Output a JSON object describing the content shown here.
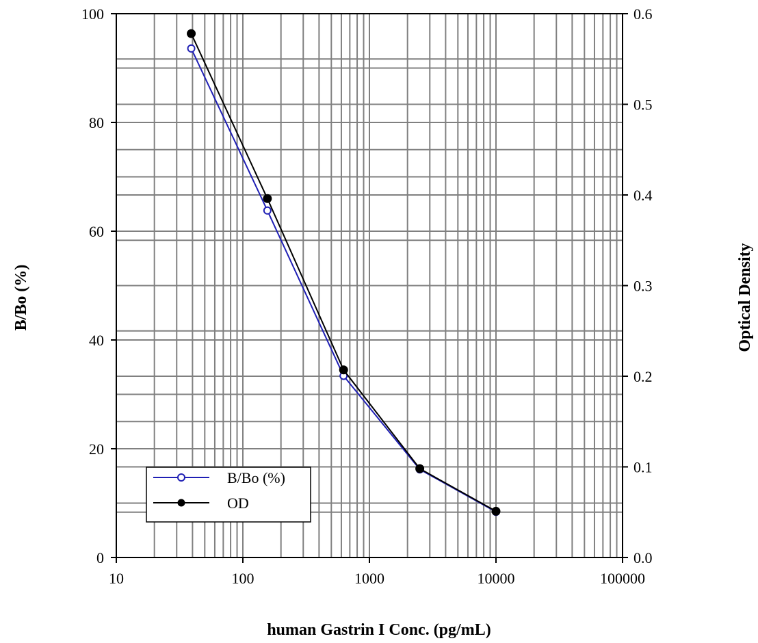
{
  "chart_data": {
    "type": "line",
    "xlabel": "human Gastrin I Conc. (pg/mL)",
    "ylabel_left": "B/Bo (%)",
    "ylabel_right": "Optical Density",
    "x_scale": "log",
    "xlim": [
      10,
      100000
    ],
    "ylim_left": [
      0,
      100
    ],
    "ylim_right": [
      0.0,
      0.6
    ],
    "x_ticks": [
      10,
      100,
      1000,
      10000,
      100000
    ],
    "x_tick_labels": [
      "10",
      "100",
      "1000",
      "10000",
      "100000"
    ],
    "y_left_ticks": [
      0,
      20,
      40,
      60,
      80,
      100
    ],
    "y_left_tick_labels": [
      "0",
      "20",
      "40",
      "60",
      "80",
      "100"
    ],
    "y_right_ticks": [
      0.0,
      0.1,
      0.2,
      0.3,
      0.4,
      0.5,
      0.6
    ],
    "y_right_tick_labels": [
      "0.0",
      "0.1",
      "0.2",
      "0.3",
      "0.4",
      "0.5",
      "0.6"
    ],
    "grid": true,
    "legend_position": "bottom-left",
    "series": [
      {
        "name": "B/Bo (%)",
        "axis": "left",
        "color": "#1f1fb4",
        "marker": "open-circle",
        "x": [
          39.1,
          156.25,
          625,
          2500,
          10000
        ],
        "y": [
          93.6,
          63.8,
          33.4,
          16.2,
          8.4
        ]
      },
      {
        "name": "OD",
        "axis": "right",
        "color": "#000000",
        "marker": "filled-circle",
        "x": [
          39.1,
          156.25,
          625,
          2500,
          10000
        ],
        "y": [
          0.578,
          0.396,
          0.207,
          0.098,
          0.051
        ]
      }
    ]
  }
}
